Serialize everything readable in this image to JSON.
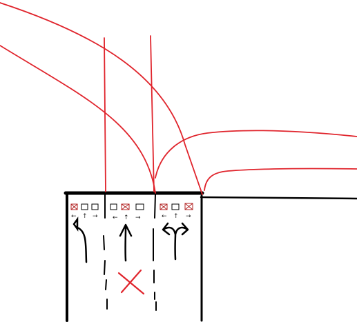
{
  "diagram": {
    "type": "hand-drawn intersection lane sketch",
    "colors": {
      "road_edges": "#000000",
      "red_paths": "#e0242c",
      "signal_x": "#b22222",
      "background": "#ffffff"
    },
    "lanes": [
      {
        "name": "left lane",
        "signal_lights": [
          {
            "state": "crossed"
          },
          {
            "state": "empty"
          },
          {
            "state": "empty"
          }
        ],
        "signal_labels": [
          "←",
          "↑",
          "→"
        ],
        "pavement_arrow": "left-turn"
      },
      {
        "name": "middle lane",
        "signal_lights": [
          {
            "state": "empty"
          },
          {
            "state": "crossed"
          },
          {
            "state": "empty"
          }
        ],
        "signal_labels": [
          "←",
          "↑",
          "→"
        ],
        "pavement_arrow": "straight"
      },
      {
        "name": "right lane",
        "signal_lights": [
          {
            "state": "crossed"
          },
          {
            "state": "empty"
          },
          {
            "state": "crossed"
          }
        ],
        "signal_labels": [
          "←",
          "↑",
          "→"
        ],
        "pavement_arrow": "left-and-right"
      }
    ],
    "closed_marker": "red-x",
    "legend": "none",
    "title": ""
  }
}
